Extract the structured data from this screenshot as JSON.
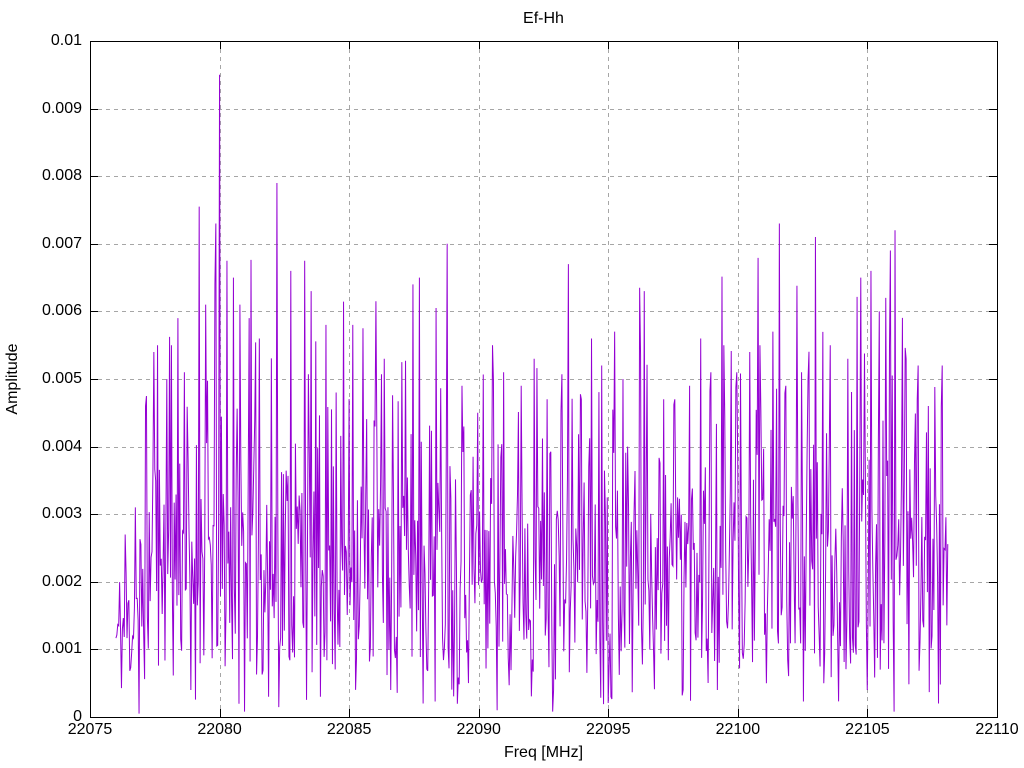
{
  "window": {
    "background": "#ffffff"
  },
  "chart_data": {
    "type": "line",
    "title": "Ef-Hh",
    "xlabel": "Freq [MHz]",
    "ylabel": "Amplitude",
    "xlim": [
      22075,
      22110
    ],
    "ylim": [
      0,
      0.01
    ],
    "x_ticks": [
      22075,
      22080,
      22085,
      22090,
      22095,
      22100,
      22105,
      22110
    ],
    "x_tick_labels": [
      "22075",
      "22080",
      "22085",
      "22090",
      "22095",
      "22100",
      "22105",
      "22110"
    ],
    "y_ticks": [
      0,
      0.001,
      0.002,
      0.003,
      0.004,
      0.005,
      0.006,
      0.007,
      0.008,
      0.009,
      0.01
    ],
    "y_tick_labels": [
      "0",
      "0.001",
      "0.002",
      "0.003",
      "0.004",
      "0.005",
      "0.006",
      "0.007",
      "0.008",
      "0.009",
      "0.01"
    ],
    "grid": true,
    "legend": "none",
    "line_color": "#9400d3",
    "grid_color": "#a6a6a6",
    "border_color": "#000000",
    "series_name": "spectrum-trace",
    "series_x_start": 22076.0,
    "series_x_end": 22108.1,
    "n_points": 900,
    "noise_sigma": 0.00195,
    "noise_seed": 11,
    "noise_cap": 0.0073,
    "y_floor": 8e-05,
    "envelope": [
      [
        22076.0,
        0.5
      ],
      [
        22076.7,
        0.62
      ],
      [
        22077.3,
        0.95
      ],
      [
        22078.0,
        1.0
      ],
      [
        22106.9,
        1.0
      ],
      [
        22107.4,
        0.85
      ],
      [
        22108.1,
        0.8
      ]
    ],
    "peaks": [
      [
        22076.35,
        0.0027
      ],
      [
        22076.75,
        0.0031
      ],
      [
        22077.15,
        0.0046
      ],
      [
        22077.45,
        0.0054
      ],
      [
        22077.6,
        0.0055
      ],
      [
        22077.95,
        0.005
      ],
      [
        22078.15,
        0.0055
      ],
      [
        22078.4,
        0.0059
      ],
      [
        22078.65,
        0.0051
      ],
      [
        22079.2,
        0.00755
      ],
      [
        22079.45,
        0.0061
      ],
      [
        22079.85,
        0.0073
      ],
      [
        22080.0,
        0.0095
      ],
      [
        22080.3,
        0.00675
      ],
      [
        22080.55,
        0.0065
      ],
      [
        22080.8,
        0.0061
      ],
      [
        22081.15,
        0.0059
      ],
      [
        22081.55,
        0.0056
      ],
      [
        22082.2,
        0.0079
      ],
      [
        22082.75,
        0.0066
      ],
      [
        22083.3,
        0.00675
      ],
      [
        22083.55,
        0.0063
      ],
      [
        22084.1,
        0.0058
      ],
      [
        22084.5,
        0.0048
      ],
      [
        22085.15,
        0.0058
      ],
      [
        22085.55,
        0.00575
      ],
      [
        22086.05,
        0.00615
      ],
      [
        22086.35,
        0.0053
      ],
      [
        22087.05,
        0.00525
      ],
      [
        22087.45,
        0.0064
      ],
      [
        22087.7,
        0.0065
      ],
      [
        22088.35,
        0.00605
      ],
      [
        22088.8,
        0.007
      ],
      [
        22089.35,
        0.0049
      ],
      [
        22089.95,
        0.0045
      ],
      [
        22090.55,
        0.0055
      ],
      [
        22090.95,
        0.0051
      ],
      [
        22091.65,
        0.0049
      ],
      [
        22092.15,
        0.0053
      ],
      [
        22092.65,
        0.0047
      ],
      [
        22093.45,
        0.0067
      ],
      [
        22093.95,
        0.0047
      ],
      [
        22094.35,
        0.0056
      ],
      [
        22094.75,
        0.0052
      ],
      [
        22095.25,
        0.0057
      ],
      [
        22095.55,
        0.005
      ],
      [
        22096.2,
        0.00635
      ],
      [
        22096.4,
        0.0063
      ],
      [
        22097.15,
        0.0047
      ],
      [
        22097.55,
        0.0047
      ],
      [
        22098.15,
        0.0049
      ],
      [
        22098.55,
        0.0056
      ],
      [
        22098.95,
        0.0051
      ],
      [
        22099.45,
        0.0055
      ],
      [
        22099.95,
        0.0051
      ],
      [
        22100.45,
        0.0054
      ],
      [
        22100.85,
        0.0055
      ],
      [
        22101.35,
        0.0057
      ],
      [
        22101.85,
        0.0049
      ],
      [
        22102.45,
        0.0051
      ],
      [
        22103.0,
        0.0071
      ],
      [
        22103.55,
        0.0055
      ],
      [
        22104.25,
        0.0053
      ],
      [
        22104.75,
        0.0065
      ],
      [
        22105.15,
        0.0066
      ],
      [
        22105.45,
        0.006
      ],
      [
        22105.7,
        0.0062
      ],
      [
        22105.9,
        0.0069
      ],
      [
        22106.05,
        0.0072
      ],
      [
        22106.5,
        0.0053
      ],
      [
        22106.95,
        0.0052
      ],
      [
        22107.35,
        0.0046
      ],
      [
        22107.9,
        0.0052
      ]
    ],
    "dips": [
      [
        22076.9,
        5e-05
      ],
      [
        22078.9,
        0.0004
      ],
      [
        22081.9,
        0.0003
      ],
      [
        22083.9,
        0.0003
      ],
      [
        22086.6,
        0.0004
      ],
      [
        22087.85,
        0.0002
      ],
      [
        22090.7,
        0.0001
      ],
      [
        22092.9,
        0.0004
      ],
      [
        22095.1,
        0.0003
      ],
      [
        22097.9,
        0.0004
      ],
      [
        22099.2,
        0.0004
      ],
      [
        22101.1,
        0.0005
      ],
      [
        22103.3,
        0.0005
      ],
      [
        22105.0,
        0.0004
      ],
      [
        22107.75,
        0.0002
      ]
    ]
  }
}
